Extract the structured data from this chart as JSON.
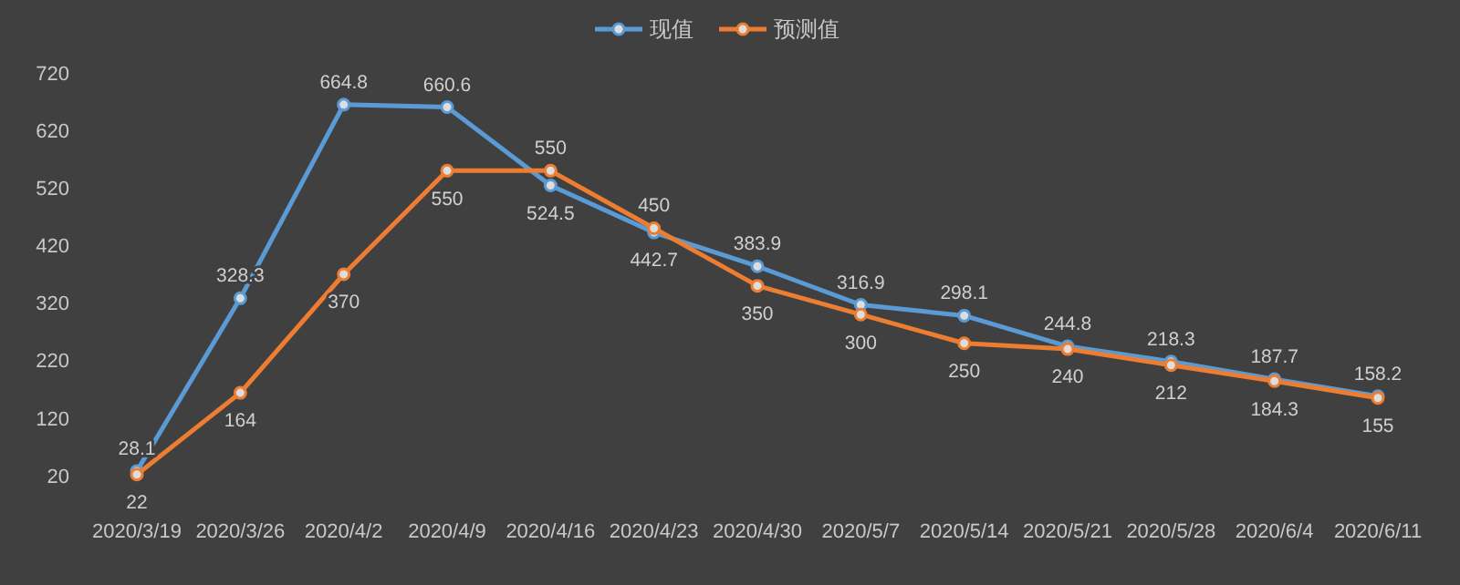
{
  "chart_data": {
    "type": "line",
    "categories": [
      "2020/3/19",
      "2020/3/26",
      "2020/4/2",
      "2020/4/9",
      "2020/4/16",
      "2020/4/23",
      "2020/4/30",
      "2020/5/7",
      "2020/5/14",
      "2020/5/21",
      "2020/5/28",
      "2020/6/4",
      "2020/6/11"
    ],
    "series": [
      {
        "name": "现值",
        "color": "#5b9bd5",
        "values": [
          28.1,
          328.3,
          664.8,
          660.6,
          524.5,
          442.7,
          383.9,
          316.9,
          298.1,
          244.8,
          218.3,
          187.7,
          158.2
        ]
      },
      {
        "name": "预测值",
        "color": "#ed7d31",
        "values": [
          22,
          164,
          370,
          550,
          550,
          450,
          350,
          300,
          250,
          240,
          212,
          184.3,
          155
        ]
      }
    ],
    "ylim": [
      20,
      720
    ],
    "yticks": [
      20,
      120,
      220,
      320,
      420,
      520,
      620,
      720
    ],
    "legend": "top",
    "data_labels": true,
    "marker": "circle",
    "grid": false
  }
}
